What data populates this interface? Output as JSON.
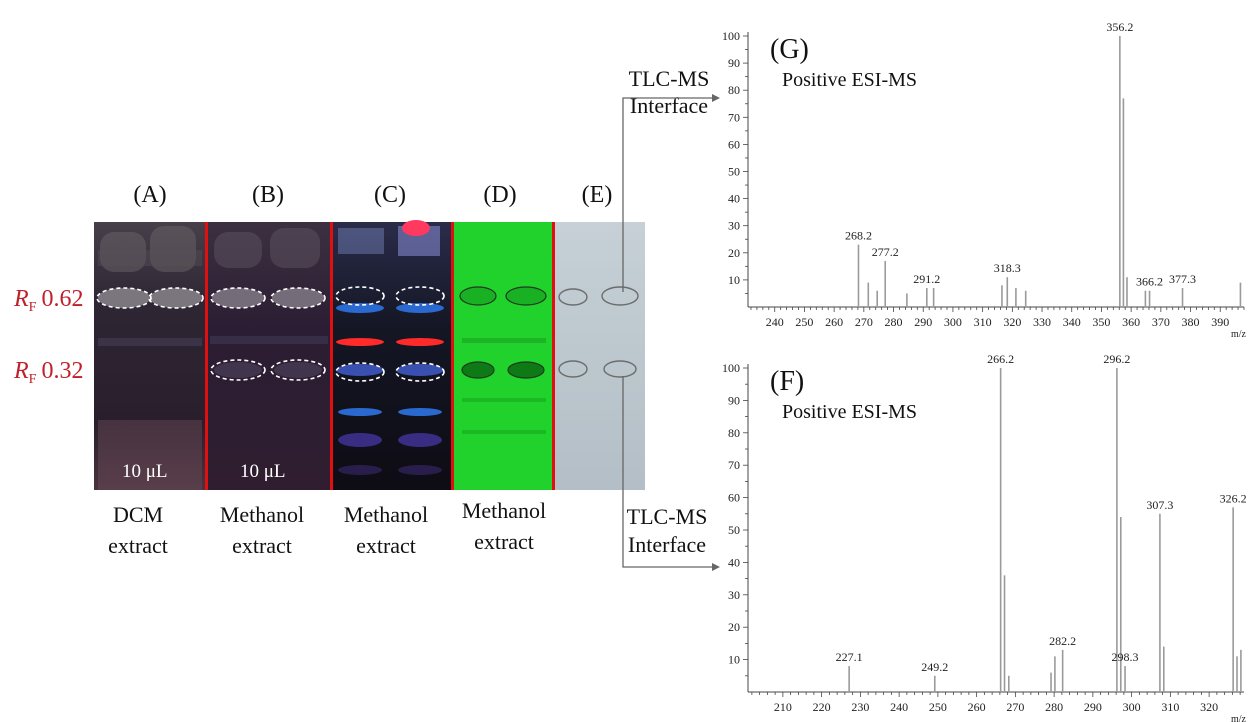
{
  "tlc": {
    "rf_prefix": "R",
    "rf_sub": "F",
    "rf_values": [
      "0.62",
      "0.32"
    ],
    "lanes": [
      {
        "letter": "(A)",
        "caption_l1": "DCM",
        "caption_l2": "extract",
        "volume": "10 μL"
      },
      {
        "letter": "(B)",
        "caption_l1": "Methanol",
        "caption_l2": "extract",
        "volume": "10 μL"
      },
      {
        "letter": "(C)",
        "caption_l1": "Methanol",
        "caption_l2": "extract",
        "volume": ""
      },
      {
        "letter": "(D)",
        "caption_l1": "Methanol",
        "caption_l2": "extract",
        "volume": ""
      },
      {
        "letter": "(E)",
        "caption_l1": "",
        "caption_l2": "",
        "volume": ""
      }
    ],
    "colors": {
      "rf_label": "#c0202a",
      "divider": "#e01010",
      "plate_green": "#20d42a",
      "plate_dark": "#2a1f2e"
    }
  },
  "interface_label": {
    "line1": "TLC-MS",
    "line2": "Interface"
  },
  "chart_data": [
    {
      "type": "bar",
      "panel": "(G)",
      "title": "Positive ESI-MS",
      "xlabel": "m/z",
      "xlim": [
        231,
        398
      ],
      "ylim": [
        0,
        100
      ],
      "xticks": [
        240,
        250,
        260,
        270,
        280,
        290,
        300,
        310,
        320,
        330,
        340,
        350,
        360,
        370,
        380,
        390
      ],
      "yticks": [
        10,
        20,
        30,
        40,
        50,
        60,
        70,
        80,
        90,
        100
      ],
      "peaks": [
        {
          "x": 268.2,
          "y": 23,
          "label": "268.2"
        },
        {
          "x": 271.5,
          "y": 9,
          "label": ""
        },
        {
          "x": 274.5,
          "y": 6,
          "label": ""
        },
        {
          "x": 277.2,
          "y": 17,
          "label": "277.2"
        },
        {
          "x": 284.5,
          "y": 5,
          "label": ""
        },
        {
          "x": 291.2,
          "y": 7,
          "label": "291.2"
        },
        {
          "x": 293.5,
          "y": 7,
          "label": ""
        },
        {
          "x": 316.5,
          "y": 8,
          "label": ""
        },
        {
          "x": 318.3,
          "y": 11,
          "label": "318.3"
        },
        {
          "x": 321.2,
          "y": 7,
          "label": ""
        },
        {
          "x": 324.5,
          "y": 6,
          "label": ""
        },
        {
          "x": 356.2,
          "y": 100,
          "label": "356.2"
        },
        {
          "x": 357.4,
          "y": 77,
          "label": ""
        },
        {
          "x": 358.6,
          "y": 11,
          "label": ""
        },
        {
          "x": 364.8,
          "y": 6,
          "label": ""
        },
        {
          "x": 366.2,
          "y": 6,
          "label": "366.2"
        },
        {
          "x": 377.3,
          "y": 7,
          "label": "377.3"
        },
        {
          "x": 396.8,
          "y": 9,
          "label": ""
        }
      ]
    },
    {
      "type": "bar",
      "panel": "(F)",
      "title": "Positive ESI-MS",
      "xlabel": "m/z",
      "xlim": [
        201,
        329
      ],
      "ylim": [
        0,
        100
      ],
      "xticks": [
        210,
        220,
        230,
        240,
        250,
        260,
        270,
        280,
        290,
        300,
        310,
        320
      ],
      "yticks": [
        10,
        20,
        30,
        40,
        50,
        60,
        70,
        80,
        90,
        100
      ],
      "peaks": [
        {
          "x": 227.1,
          "y": 8,
          "label": "227.1"
        },
        {
          "x": 249.2,
          "y": 5,
          "label": "249.2"
        },
        {
          "x": 266.2,
          "y": 100,
          "label": "266.2"
        },
        {
          "x": 267.2,
          "y": 36,
          "label": ""
        },
        {
          "x": 268.3,
          "y": 5,
          "label": ""
        },
        {
          "x": 279.2,
          "y": 6,
          "label": ""
        },
        {
          "x": 280.2,
          "y": 11,
          "label": ""
        },
        {
          "x": 282.2,
          "y": 13,
          "label": "282.2"
        },
        {
          "x": 296.2,
          "y": 100,
          "label": "296.2"
        },
        {
          "x": 297.2,
          "y": 54,
          "label": ""
        },
        {
          "x": 298.3,
          "y": 8,
          "label": "298.3"
        },
        {
          "x": 307.3,
          "y": 55,
          "label": "307.3"
        },
        {
          "x": 308.3,
          "y": 14,
          "label": ""
        },
        {
          "x": 326.2,
          "y": 57,
          "label": "326.2"
        },
        {
          "x": 327.2,
          "y": 11,
          "label": ""
        },
        {
          "x": 328.2,
          "y": 13,
          "label": ""
        }
      ]
    }
  ]
}
